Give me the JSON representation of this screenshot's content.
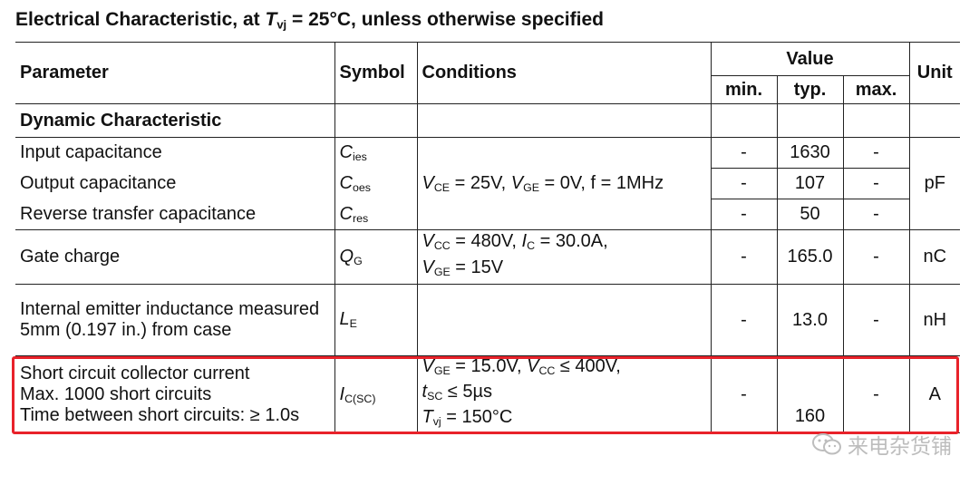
{
  "heading": {
    "prefix": "Electrical Characteristic, at ",
    "var": "T",
    "sub": "vj",
    "suffix": " = 25°C, unless otherwise specified"
  },
  "header": {
    "parameter": "Parameter",
    "symbol": "Symbol",
    "conditions": "Conditions",
    "value": "Value",
    "min": "min.",
    "typ": "typ.",
    "max": "max.",
    "unit": "Unit"
  },
  "section": "Dynamic Characteristic",
  "rows": {
    "cies": {
      "param": "Input capacitance",
      "sym": "C",
      "sub": "ies",
      "min": "-",
      "typ": "1630",
      "max": "-"
    },
    "coes": {
      "param": "Output capacitance",
      "sym": "C",
      "sub": "oes",
      "min": "-",
      "typ": "107",
      "max": "-"
    },
    "cres": {
      "param": "Reverse transfer capacitance",
      "sym": "C",
      "sub": "res",
      "min": "-",
      "typ": "50",
      "max": "-"
    },
    "cap_conditions": {
      "v1": "V",
      "s1": "CE",
      "t1": " = 25V, ",
      "v2": "V",
      "s2": "GE",
      "t2": " = 0V, f = 1MHz"
    },
    "cap_unit": "pF",
    "qg": {
      "param": "Gate charge",
      "sym": "Q",
      "sub": "G",
      "c1v": "V",
      "c1s": "CC",
      "c1t": " = 480V, ",
      "c1v2": "I",
      "c1s2": "C",
      "c1t2": " = 30.0A,",
      "c2v": "V",
      "c2s": "GE",
      "c2t": " = 15V",
      "min": "-",
      "typ": "165.0",
      "max": "-",
      "unit": "nC"
    },
    "le": {
      "param": "Internal emitter inductance measured 5mm (0.197 in.) from case",
      "sym": "L",
      "sub": "E",
      "min": "-",
      "typ": "13.0",
      "max": "-",
      "unit": "nH"
    },
    "isc": {
      "p1": "Short circuit collector current",
      "p2": "Max. 1000 short circuits",
      "p3": "Time between short circuits: ≥ 1.0s",
      "sym": "I",
      "sub": "C(SC)",
      "c1v": "V",
      "c1s": "GE",
      "c1t": " = 15.0V, ",
      "c1v2": "V",
      "c1s2": "CC",
      "c1t2": " ≤ 400V,",
      "c2v": "t",
      "c2s": "SC",
      "c2t": " ≤ 5µs",
      "c3v": "T",
      "c3s": "vj",
      "c3t": " = 150°C",
      "min": "-",
      "typ": "160",
      "max": "-",
      "unit": "A"
    }
  },
  "watermark": "来电杂货铺",
  "colors": {
    "highlight": "#e8222a",
    "watermark": "#bdbdbd"
  }
}
